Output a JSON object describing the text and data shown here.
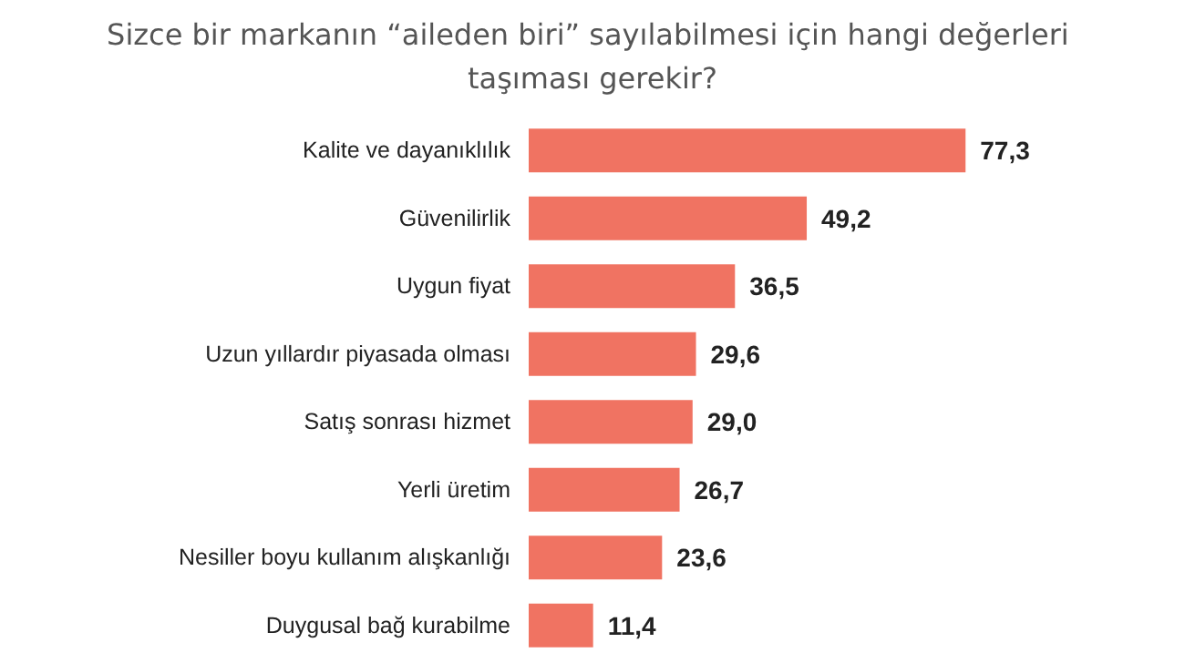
{
  "chart_data": {
    "type": "bar",
    "orientation": "horizontal",
    "title": "Sizce bir markanın “aileden biri” sayılabilmesi için hangi değerleri taşıması gerekir?",
    "categories": [
      "Kalite ve dayanıklılık",
      "Güvenilirlik",
      "Uygun fiyat",
      "Uzun yıllardır piyasada olması",
      "Satış sonrası hizmet",
      "Yerli üretim",
      "Nesiller boyu kullanım alışkanlığı",
      "Duygusal bağ kurabilme"
    ],
    "values": [
      77.3,
      49.2,
      36.5,
      29.6,
      29.0,
      26.7,
      23.6,
      11.4
    ],
    "value_labels": [
      "77,3",
      "49,2",
      "36,5",
      "29,6",
      "29,0",
      "26,7",
      "23,6",
      "11,4"
    ],
    "color": "#f07362"
  }
}
